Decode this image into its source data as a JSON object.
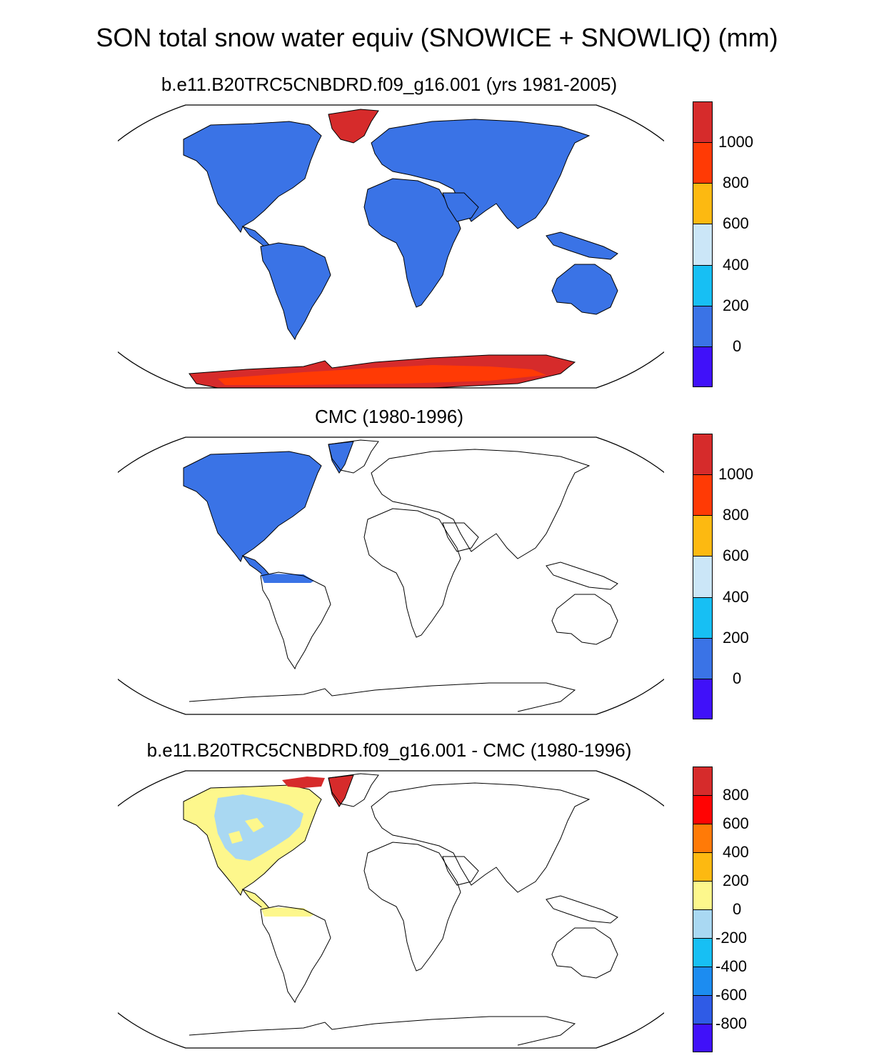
{
  "title": "SON total snow water equiv (SNOWICE + SNOWLIQ) (mm)",
  "panels": [
    {
      "title": "b.e11.B20TRC5CNBDRD.f09_g16.001 (yrs 1981-2005)",
      "colorbar": {
        "labels": [
          "1000",
          "800",
          "600",
          "400",
          "200",
          "0"
        ],
        "colors": [
          "#d62b2b",
          "#ff3a05",
          "#fdb911",
          "#cbe6f7",
          "#17bff4",
          "#3a73e6",
          "#4011f9"
        ]
      }
    },
    {
      "title": "CMC (1980-1996)",
      "colorbar": {
        "labels": [
          "1000",
          "800",
          "600",
          "400",
          "200",
          "0"
        ],
        "colors": [
          "#d62b2b",
          "#ff3a05",
          "#fdb911",
          "#cbe6f7",
          "#17bff4",
          "#3a73e6",
          "#4011f9"
        ]
      }
    },
    {
      "title": "b.e11.B20TRC5CNBDRD.f09_g16.001 - CMC (1980-1996)",
      "colorbar": {
        "labels": [
          "800",
          "600",
          "400",
          "200",
          "0",
          "-200",
          "-400",
          "-600",
          "-800"
        ],
        "colors": [
          "#d62b2b",
          "#ff0303",
          "#ff7a07",
          "#fdb911",
          "#fdf78c",
          "#a9d8f2",
          "#17bff4",
          "#1c8cf0",
          "#2f5be6",
          "#4011f9"
        ]
      }
    }
  ]
}
